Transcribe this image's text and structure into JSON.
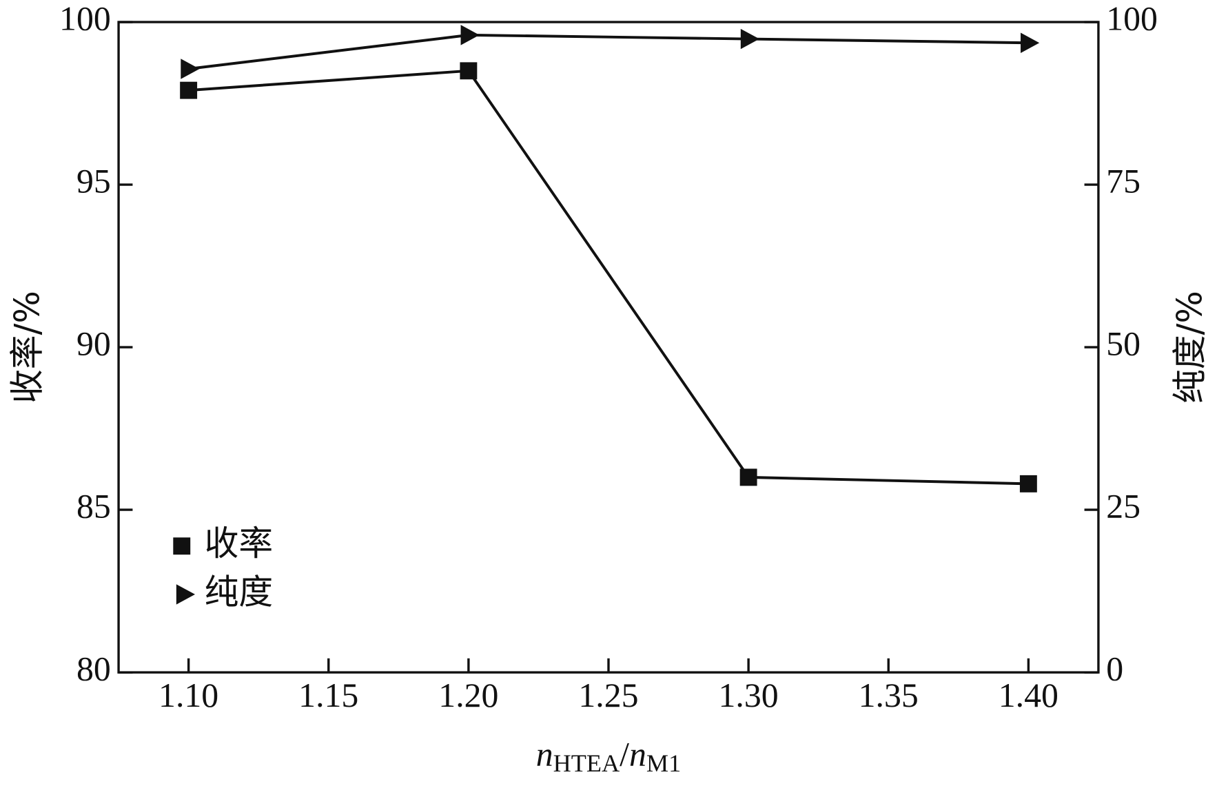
{
  "chart_data": {
    "type": "line",
    "x": [
      1.1,
      1.2,
      1.3,
      1.4
    ],
    "xlim": [
      1.075,
      1.425
    ],
    "xticks": [
      {
        "value": 1.1,
        "label": "1.10"
      },
      {
        "value": 1.15,
        "label": "1.15"
      },
      {
        "value": 1.2,
        "label": "1.20"
      },
      {
        "value": 1.25,
        "label": "1.25"
      },
      {
        "value": 1.3,
        "label": "1.30"
      },
      {
        "value": 1.35,
        "label": "1.35"
      },
      {
        "value": 1.4,
        "label": "1.40"
      }
    ],
    "ylim": [
      80,
      100
    ],
    "yticks": [
      80,
      85,
      90,
      95,
      100
    ],
    "y2lim": [
      0,
      100
    ],
    "y2ticks": [
      0,
      25,
      50,
      75,
      100
    ],
    "ylabel": "收率/%",
    "y2label": "纯度/%",
    "xlabel_parts": [
      "n",
      "HTEA",
      "/",
      "n",
      "M1"
    ],
    "legend": "lower left",
    "series": [
      {
        "name": "收率",
        "color": "#111111",
        "marker": "square",
        "values": [
          97.9,
          98.5,
          86.0,
          85.8
        ]
      },
      {
        "name": "纯度",
        "color": "#111111",
        "marker": "triangle-right",
        "axis": "y2",
        "values": [
          92.8,
          98.0,
          97.4,
          96.8
        ]
      }
    ]
  }
}
